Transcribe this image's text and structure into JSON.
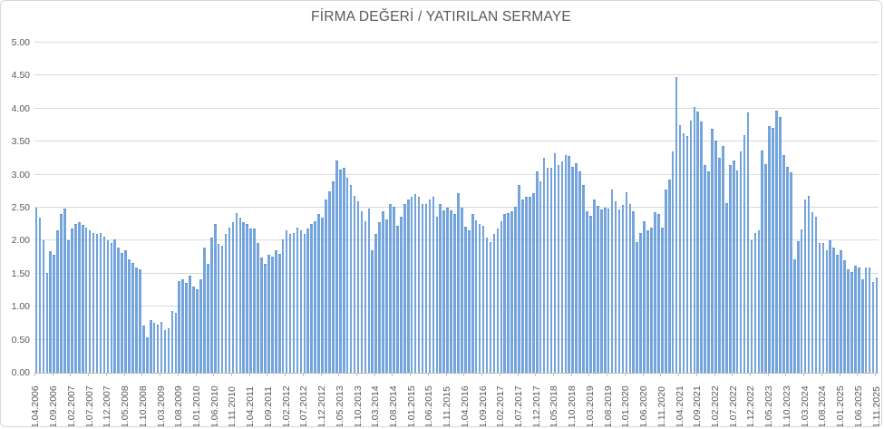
{
  "title": "FİRMA DEĞERİ / YATIRILAN SERMAYE",
  "chart_data": {
    "type": "bar",
    "title": "FİRMA DEĞERİ / YATIRILAN SERMAYE",
    "subtitle": "",
    "xlabel": "",
    "ylabel": "",
    "frequency": "monthly",
    "first_month": "1.04.2006",
    "last_month": "1.11.2025",
    "ylim": [
      0,
      5
    ],
    "y_tick_step": 0.5,
    "y_tick_labels": [
      "0.00",
      "0.50",
      "1.00",
      "1.50",
      "2.00",
      "2.50",
      "3.00",
      "3.50",
      "4.00",
      "4.50",
      "5.00"
    ],
    "x_tick_every_n_months": 5,
    "x_tick_labels": [
      "1.04.2006",
      "1.09.2006",
      "1.02.2007",
      "1.07.2007",
      "1.12.2007",
      "1.05.2008",
      "1.10.2008",
      "1.03.2009",
      "1.08.2009",
      "1.01.2010",
      "1.06.2010",
      "1.11.2010",
      "1.04.2011",
      "1.09.2011",
      "1.02.2012",
      "1.07.2012",
      "1.12.2012",
      "1.05.2013",
      "1.10.2013",
      "1.03.2014",
      "1.08.2014",
      "1.01.2015",
      "1.06.2015",
      "1.11.2015",
      "1.04.2016",
      "1.09.2016",
      "1.02.2017",
      "1.07.2017",
      "1.12.2017",
      "1.05.2018",
      "1.10.2018",
      "1.03.2019",
      "1.08.2019",
      "1.01.2020",
      "1.06.2020",
      "1.11.2020",
      "1.04.2021",
      "1.09.2021",
      "1.02.2022",
      "1.07.2022",
      "1.12.2022",
      "1.05.2023",
      "1.10.2023",
      "1.03.2024",
      "1.08.2024",
      "1.01.2025",
      "1.06.2025",
      "1.11.2025"
    ],
    "grid": true,
    "legend_position": "none",
    "bar_color": "#74a4dc",
    "gridline_color": "#d9d9d9",
    "axis_color": "#bfbfbf",
    "text_color": "#595959",
    "values": [
      2.5,
      2.35,
      2.0,
      1.51,
      1.84,
      1.78,
      2.16,
      2.41,
      2.49,
      2.0,
      2.18,
      2.25,
      2.28,
      2.24,
      2.2,
      2.16,
      2.12,
      2.1,
      2.12,
      2.06,
      2.0,
      1.96,
      2.02,
      1.9,
      1.82,
      1.86,
      1.72,
      1.66,
      1.6,
      1.57,
      0.71,
      0.53,
      0.79,
      0.75,
      0.73,
      0.77,
      0.64,
      0.68,
      0.94,
      0.91,
      1.39,
      1.42,
      1.36,
      1.47,
      1.3,
      1.26,
      1.42,
      1.9,
      1.65,
      2.05,
      2.25,
      1.95,
      1.92,
      2.1,
      2.2,
      2.28,
      2.42,
      2.35,
      2.28,
      2.25,
      2.18,
      2.18,
      1.97,
      1.74,
      1.65,
      1.79,
      1.76,
      1.85,
      1.8,
      2.02,
      2.15,
      2.1,
      2.12,
      2.2,
      2.15,
      2.1,
      2.18,
      2.25,
      2.3,
      2.4,
      2.35,
      2.62,
      2.75,
      2.9,
      3.21,
      3.08,
      3.1,
      2.95,
      2.85,
      2.68,
      2.59,
      2.45,
      2.3,
      2.48,
      1.85,
      2.1,
      2.28,
      2.45,
      2.32,
      2.55,
      2.52,
      2.22,
      2.36,
      2.55,
      2.62,
      2.66,
      2.71,
      2.66,
      2.56,
      2.56,
      2.62,
      2.66,
      2.36,
      2.56,
      2.46,
      2.5,
      2.46,
      2.41,
      2.72,
      2.5,
      2.21,
      2.16,
      2.41,
      2.31,
      2.25,
      2.22,
      2.05,
      1.98,
      2.1,
      2.18,
      2.3,
      2.4,
      2.42,
      2.45,
      2.52,
      2.85,
      2.62,
      2.66,
      2.66,
      2.72,
      3.05,
      2.9,
      3.25,
      3.1,
      3.1,
      3.32,
      3.15,
      3.2,
      3.3,
      3.28,
      3.12,
      3.18,
      3.05,
      2.85,
      2.45,
      2.37,
      2.62,
      2.53,
      2.47,
      2.5,
      2.49,
      2.78,
      2.6,
      2.47,
      2.54,
      2.74,
      2.56,
      2.45,
      1.98,
      2.11,
      2.29,
      2.15,
      2.2,
      2.43,
      2.4,
      2.2,
      2.78,
      2.93,
      3.35,
      4.48,
      3.75,
      3.62,
      3.58,
      3.82,
      4.02,
      3.95,
      3.8,
      3.14,
      3.05,
      3.69,
      3.51,
      3.26,
      3.44,
      2.57,
      3.14,
      3.21,
      3.07,
      3.35,
      3.6,
      3.94,
      2.0,
      2.11,
      2.16,
      3.37,
      3.16,
      3.74,
      3.71,
      3.97,
      3.87,
      3.3,
      3.12,
      3.03,
      1.72,
      1.99,
      2.17,
      2.63,
      2.68,
      2.43,
      2.36,
      1.97,
      1.97,
      1.85,
      2.01,
      1.9,
      1.79,
      1.86,
      1.7,
      1.57,
      1.52,
      1.62,
      1.6,
      1.42,
      1.6,
      1.6,
      1.38,
      1.44
    ]
  }
}
